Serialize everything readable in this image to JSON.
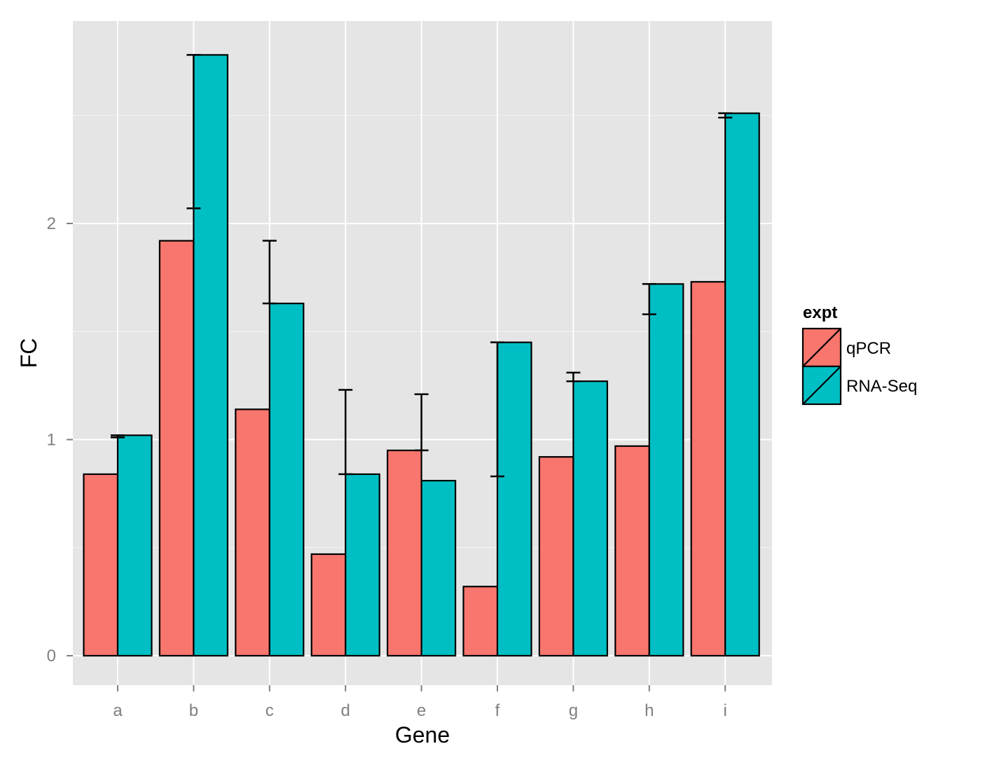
{
  "chart_data": {
    "type": "bar",
    "title": "",
    "xlabel": "Gene",
    "ylabel": "FC",
    "categories": [
      "a",
      "b",
      "c",
      "d",
      "e",
      "f",
      "g",
      "h",
      "i"
    ],
    "ylim": [
      -0.14,
      2.9
    ],
    "yticks": [
      0,
      1,
      2
    ],
    "grid": true,
    "legend": {
      "title": "expt",
      "position": "right"
    },
    "series": [
      {
        "name": "qPCR",
        "color": "#F8766D",
        "values": [
          0.84,
          1.92,
          1.14,
          0.47,
          0.95,
          0.32,
          0.92,
          0.97,
          1.73
        ]
      },
      {
        "name": "RNA-Seq",
        "color": "#00BFC4",
        "values": [
          1.02,
          2.78,
          1.63,
          0.84,
          0.81,
          1.45,
          1.27,
          1.72,
          2.51
        ]
      }
    ],
    "error_bars": [
      {
        "category": "a",
        "upper": 1.02,
        "lower": 1.01
      },
      {
        "category": "b",
        "upper": 2.78,
        "lower": 2.07
      },
      {
        "category": "c",
        "upper": 1.92,
        "lower": 1.63
      },
      {
        "category": "d",
        "upper": 1.23,
        "lower": 0.84
      },
      {
        "category": "e",
        "upper": 1.21,
        "lower": 0.95
      },
      {
        "category": "f",
        "upper": 1.45,
        "lower": 0.83
      },
      {
        "category": "g",
        "upper": 1.31,
        "lower": 1.27
      },
      {
        "category": "h",
        "upper": 1.72,
        "lower": 1.58
      },
      {
        "category": "i",
        "upper": 2.51,
        "lower": 2.49
      }
    ]
  },
  "style": {
    "panel_background": "#E5E5E5",
    "grid_color": "#FFFFFF",
    "outline_color": "#000000"
  }
}
